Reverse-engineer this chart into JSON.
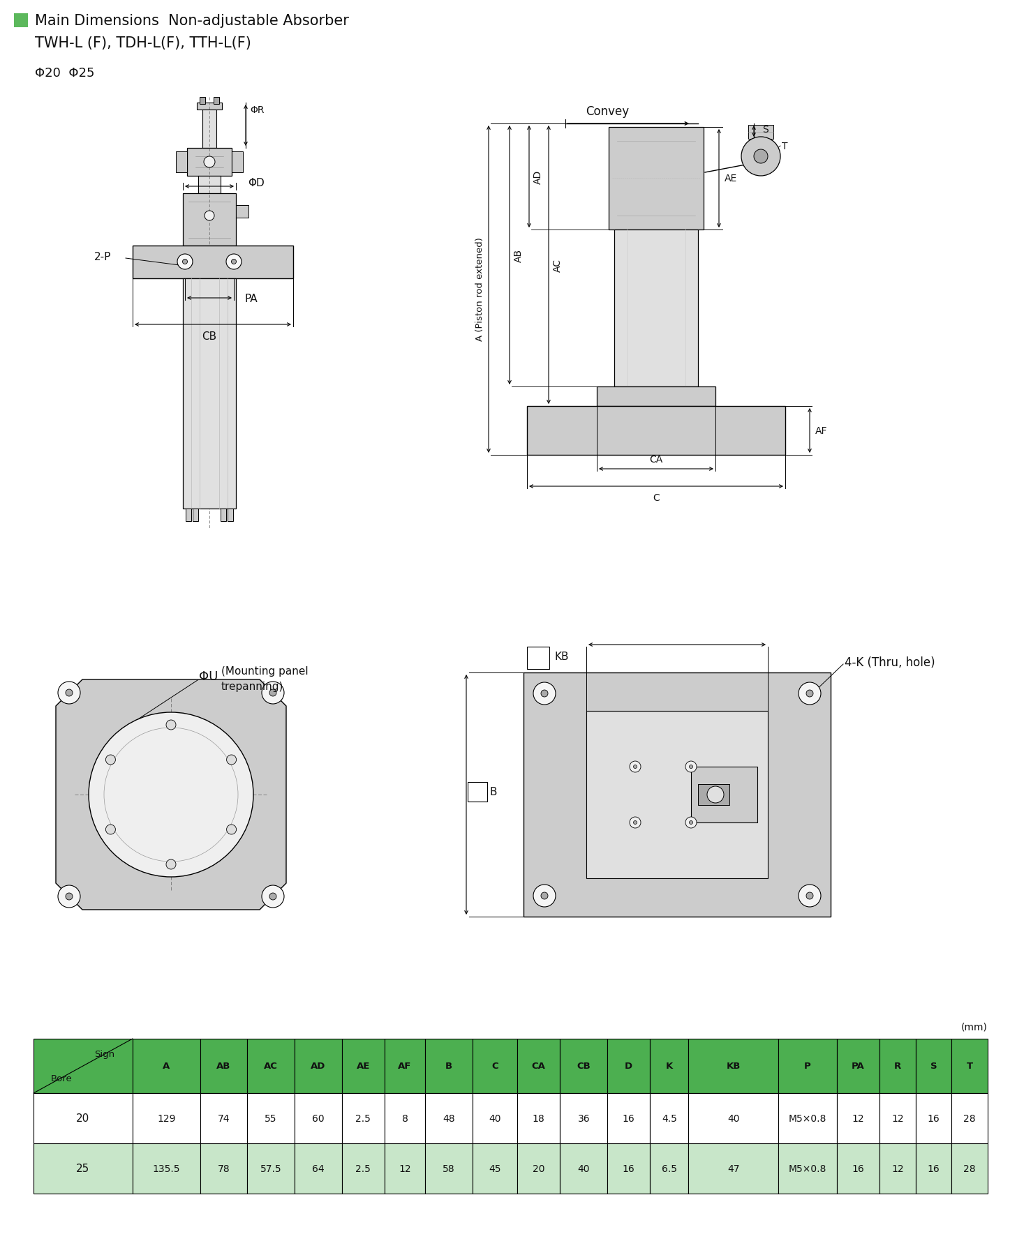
{
  "title_line1": "Main Dimensions  Non-adjustable Absorber",
  "title_line2": "TWH-L (F), TDH-L(F), TTH-L(F)",
  "title_square_color": "#5cb85c",
  "phi_text": "Φ20  Φ25",
  "unit_text": "(mm)",
  "table_header_bg": "#4caf50",
  "table_row1_bg": "#ffffff",
  "table_row2_bg": "#c8e6c9",
  "table_border_color": "#000000",
  "columns": [
    "A",
    "AB",
    "AC",
    "AD",
    "AE",
    "AF",
    "B",
    "C",
    "CA",
    "CB",
    "D",
    "K",
    "KB",
    "P",
    "PA",
    "R",
    "S",
    "T"
  ],
  "row1": {
    "bore": "20",
    "values": [
      "129",
      "74",
      "55",
      "60",
      "2.5",
      "8",
      "48",
      "40",
      "18",
      "36",
      "16",
      "4.5",
      "40",
      "M5×0.8",
      "12",
      "12",
      "16",
      "28"
    ]
  },
  "row2": {
    "bore": "25",
    "values": [
      "135.5",
      "78",
      "57.5",
      "64",
      "2.5",
      "12",
      "58",
      "45",
      "20",
      "40",
      "16",
      "6.5",
      "47",
      "M5×0.8",
      "16",
      "12",
      "16",
      "28"
    ]
  },
  "bg_color": "#ffffff",
  "lc": "#000000",
  "gray_light": "#e0e0e0",
  "gray_mid": "#cccccc",
  "gray_dark": "#aaaaaa"
}
